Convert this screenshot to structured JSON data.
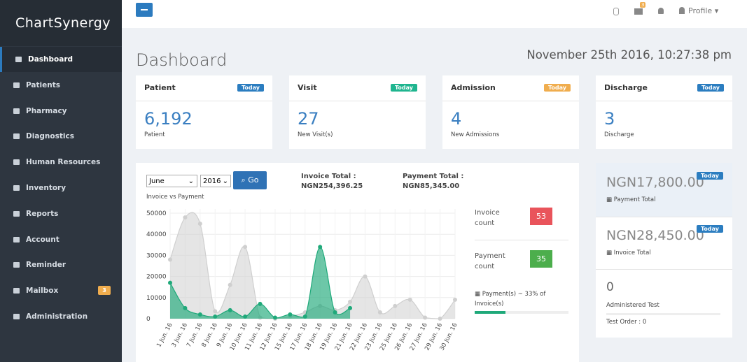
{
  "sidebar": {
    "logo": "ChartSynergy",
    "menu": [
      {
        "label": "Dashboard"
      },
      {
        "label": "Patients"
      },
      {
        "label": "Pharmacy"
      },
      {
        "label": "Diagnostics"
      },
      {
        "label": "Human Resources"
      },
      {
        "label": "Inventory"
      },
      {
        "label": "Reports"
      },
      {
        "label": "Account"
      },
      {
        "label": "Reminder"
      },
      {
        "label": "Mailbox",
        "badge": "3"
      },
      {
        "label": "Administration"
      }
    ]
  },
  "header": {
    "mail_badge": "3",
    "profile": "Profile"
  },
  "page": {
    "title": "Dashboard",
    "datetime": "November 25th 2016, 10:27:38 pm"
  },
  "cards": [
    {
      "title": "Patient",
      "badge": "Today",
      "value": "6,192",
      "label": "Patient"
    },
    {
      "title": "Visit",
      "badge": "Today",
      "value": "27",
      "label": "New Visit(s)"
    },
    {
      "title": "Admission",
      "badge": "Today",
      "value": "4",
      "label": "New Admissions"
    },
    {
      "title": "Discharge",
      "badge": "Today",
      "value": "3",
      "label": "Discharge"
    }
  ],
  "filters": {
    "month": "June",
    "year": "2016",
    "button": "Go",
    "subtitle": "Invoice vs Payment"
  },
  "totals": {
    "invoice_label": "Invoice Total :",
    "invoice_value": "NGN254,396.25",
    "payment_label": "Payment Total :",
    "payment_value": "NGN85,345.00"
  },
  "counts": {
    "invoice_label": "Invoice count",
    "invoice_value": "53",
    "payment_label": "Payment count",
    "payment_value": "35",
    "ratio": "Payment(s) ~ 33% of Invoice(s)"
  },
  "summary": {
    "payment_total": "NGN17,800.00",
    "payment_badge": "Today",
    "payment_label": "Payment Total",
    "invoice_total": "NGN28,450.00",
    "invoice_badge": "Today",
    "invoice_label": "Invoice Total",
    "tests": "0",
    "tests_label": "Administered Test",
    "test_order": "Test Order : 0"
  },
  "chart_data": {
    "type": "line",
    "categories": [
      "1 Jun. 16",
      "3 Jun. 16",
      "7 Jun. 16",
      "8 Jun. 16",
      "9 Jun. 16",
      "10 Jun. 16",
      "11 Jun. 16",
      "12 Jun. 16",
      "15 Jun. 16",
      "17 Jun. 16",
      "18 Jun. 16",
      "19 Jun. 16",
      "21 Jun. 16",
      "22 Jun. 16",
      "23 Jun. 16",
      "25 Jun. 16",
      "26 Jun. 16",
      "27 Jun. 16",
      "29 Jun. 16",
      "30 Jun. 16"
    ],
    "series": [
      {
        "color": "#cfcfcf",
        "values": [
          28000,
          48000,
          45000,
          3500,
          16000,
          34000,
          500,
          0,
          1000,
          3000,
          6000,
          4000,
          8000,
          20000,
          3000,
          6000,
          9000,
          500,
          0,
          9000
        ]
      },
      {
        "color": "#1fa97a",
        "values": [
          17000,
          5000,
          2000,
          1000,
          4000,
          1000,
          7000,
          500,
          2000,
          1000,
          34000,
          3000,
          5000,
          null,
          null,
          null,
          null,
          null,
          null,
          null
        ]
      }
    ],
    "ylim": [
      0,
      52000
    ],
    "yticks": [
      0,
      10000,
      20000,
      30000,
      40000,
      50000
    ],
    "grid": true
  }
}
